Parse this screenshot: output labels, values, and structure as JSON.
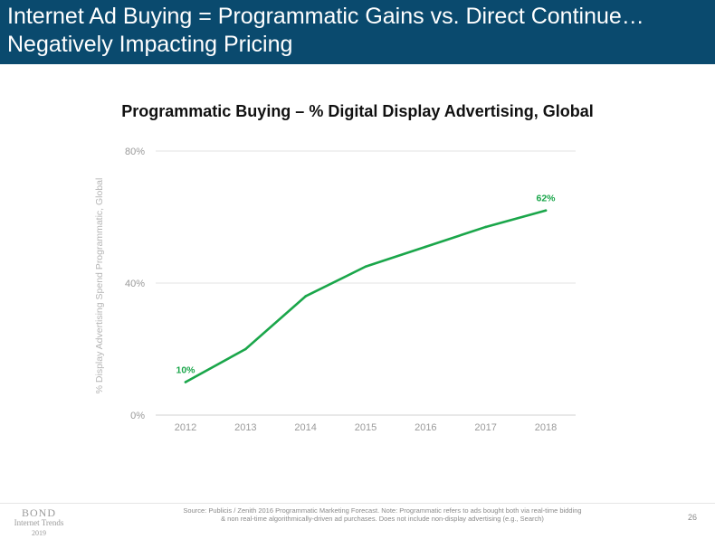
{
  "header": {
    "title_line1": "Internet Ad Buying = Programmatic Gains vs. Direct Continue…",
    "title_line2": "Negatively Impacting Pricing",
    "background": "#0a4a6e"
  },
  "chart_data": {
    "type": "line",
    "title": "Programmatic Buying – % Digital Display Advertising, Global",
    "xlabel": "",
    "ylabel": "% Display Advertising Spend Programmatic, Global",
    "categories": [
      "2012",
      "2013",
      "2014",
      "2015",
      "2016",
      "2017",
      "2018"
    ],
    "series": [
      {
        "values": [
          10,
          20,
          36,
          45,
          51,
          57,
          62
        ],
        "color": "#1aa64a"
      }
    ],
    "data_labels": [
      {
        "index": 0,
        "text": "10%"
      },
      {
        "index": 6,
        "text": "62%"
      }
    ],
    "ylim": [
      0,
      80
    ],
    "yticks": [
      0,
      40,
      80
    ],
    "ytick_labels": [
      "0%",
      "40%",
      "80%"
    ],
    "grid": true,
    "legend": "none"
  },
  "footer": {
    "logo_line1": "BOND",
    "logo_line2": "Internet Trends",
    "logo_line3": "2019",
    "source_line1": "Source: Publicis / Zenith 2016 Programmatic Marketing Forecast.  Note: Programmatic refers to ads bought both via real-time bidding",
    "source_line2": "& non real-time algorithmically-driven ad purchases.  Does not include non-display advertising (e.g., Search)",
    "page_number": "26"
  }
}
